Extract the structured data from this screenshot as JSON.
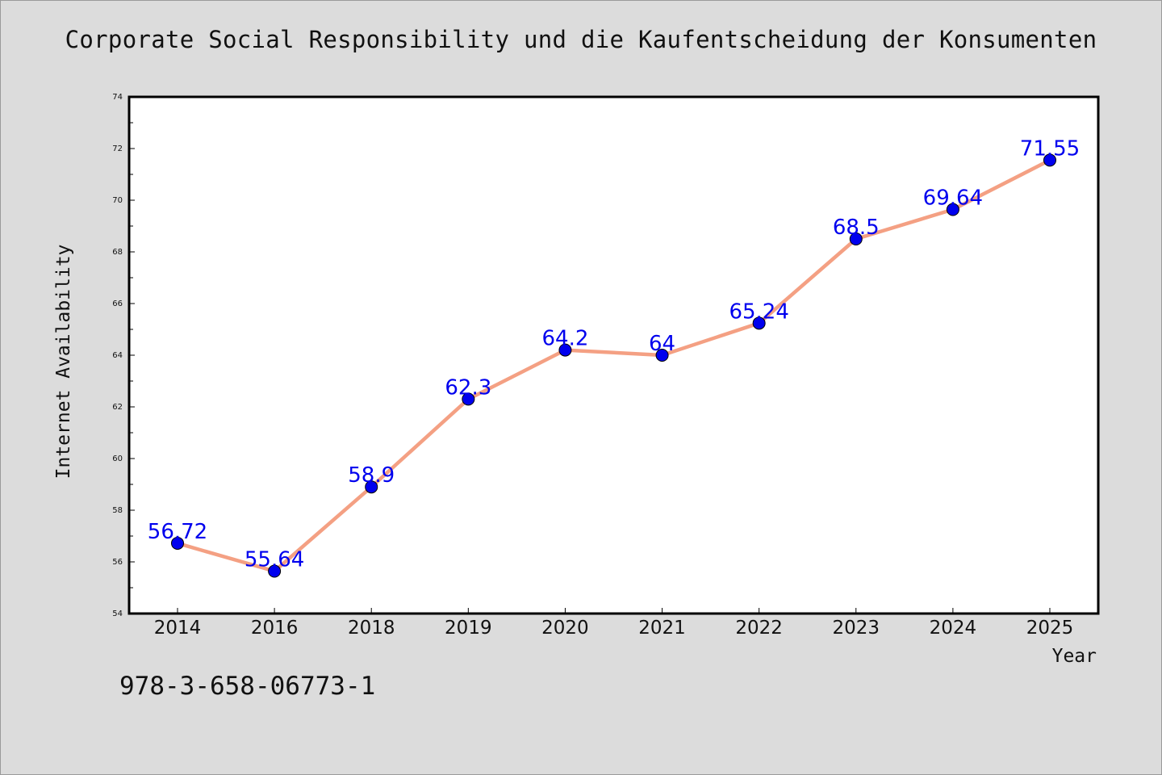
{
  "chart_data": {
    "type": "line",
    "title": "Corporate Social Responsibility und die Kaufentscheidung der Konsumenten",
    "xlabel": "Year",
    "ylabel": "Internet Availability",
    "categories": [
      "2014",
      "2016",
      "2018",
      "2019",
      "2020",
      "2021",
      "2022",
      "2023",
      "2024",
      "2025"
    ],
    "series": [
      {
        "values": [
          56.72,
          55.64,
          58.9,
          62.3,
          64.2,
          64,
          65.24,
          68.5,
          69.64,
          71.55
        ],
        "labels": [
          "56.72",
          "55.64",
          "58.9",
          "62.3",
          "64.2",
          "64",
          "65.24",
          "68.5",
          "69.64",
          "71.55"
        ]
      }
    ],
    "ylim": [
      54,
      74
    ],
    "yticks": [
      "54",
      "56",
      "58",
      "60",
      "62",
      "64",
      "66",
      "68",
      "70",
      "72",
      "74"
    ],
    "grid": false,
    "colors": {
      "line": "#f4a083",
      "marker": "#0000ee",
      "label": "#0000ee"
    }
  },
  "footer": {
    "code": "978-3-658-06773-1"
  }
}
